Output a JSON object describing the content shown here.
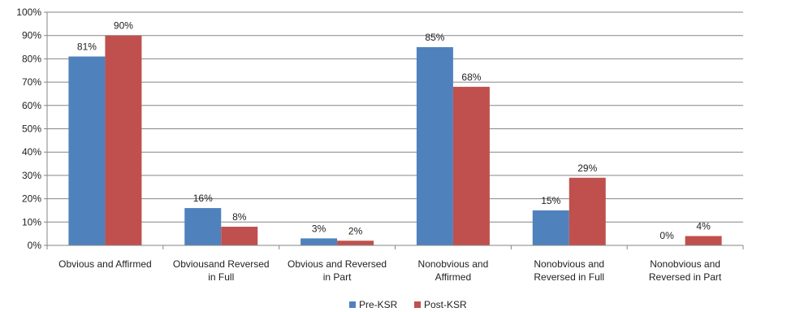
{
  "chart_data": {
    "type": "bar",
    "title": "",
    "xlabel": "",
    "ylabel": "",
    "ylim": [
      0,
      100
    ],
    "y_ticks": [
      "0%",
      "10%",
      "20%",
      "30%",
      "40%",
      "50%",
      "60%",
      "70%",
      "80%",
      "90%",
      "100%"
    ],
    "grid": true,
    "legend_position": "bottom",
    "categories": [
      [
        "Obvious and Affirmed"
      ],
      [
        "Obviousand Reversed",
        "in Full"
      ],
      [
        "Obvious and Reversed",
        "in Part"
      ],
      [
        "Nonobvious and",
        "Affirmed"
      ],
      [
        "Nonobvious and",
        "Reversed in Full"
      ],
      [
        "Nonobvious and",
        "Reversed in Part"
      ]
    ],
    "series": [
      {
        "name": "Pre-KSR",
        "color": "#4F81BD",
        "values": [
          81,
          16,
          3,
          85,
          15,
          0
        ],
        "labels": [
          "81%",
          "16%",
          "3%",
          "85%",
          "15%",
          "0%"
        ]
      },
      {
        "name": "Post-KSR",
        "color": "#C0504D",
        "values": [
          90,
          8,
          2,
          68,
          29,
          4
        ],
        "labels": [
          "90%",
          "8%",
          "2%",
          "68%",
          "29%",
          "4%"
        ]
      }
    ]
  }
}
